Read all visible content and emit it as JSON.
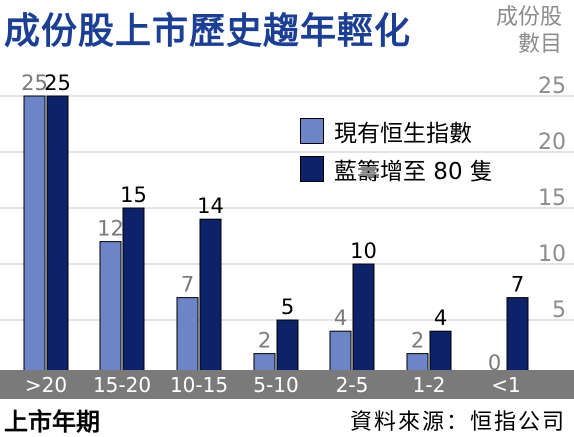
{
  "chart_data": {
    "type": "bar",
    "title": "成份股上市歷史趨年輕化",
    "ylabel": [
      "成份股",
      "數目"
    ],
    "xlabel": "上市年期",
    "source": "資料來源：恒指公司",
    "categories": [
      ">20",
      "15-20",
      "10-15",
      "5-10",
      "2-5",
      "1-2",
      "<1"
    ],
    "series": [
      {
        "name": "現有恒生指數",
        "values": [
          25,
          12,
          7,
          2,
          4,
          2,
          0
        ],
        "color": "#6d84c6"
      },
      {
        "name": "藍籌增至 80 隻",
        "values": [
          25,
          15,
          14,
          5,
          10,
          4,
          7
        ],
        "color": "#0d2268"
      }
    ],
    "yticks": [
      5,
      10,
      15,
      20,
      25
    ],
    "ylim": [
      0,
      27
    ],
    "grid": true,
    "axis_band_color": "#7a7a7a",
    "title_color": "#1c3f93"
  }
}
